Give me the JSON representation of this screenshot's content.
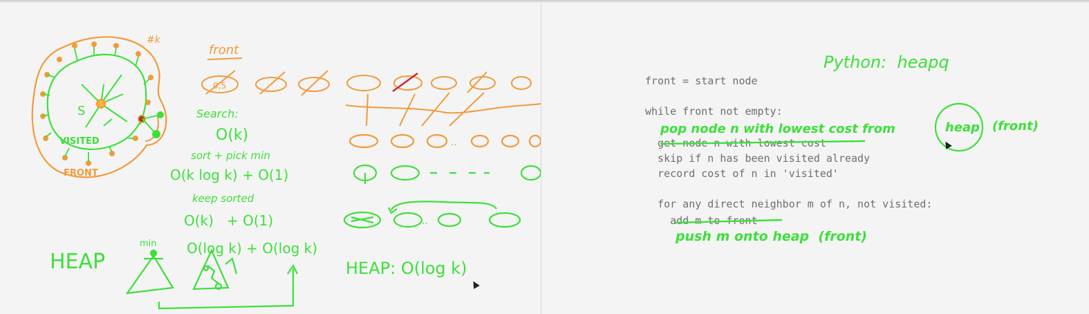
{
  "left_panel": {
    "diagram": {
      "label_k": "#k",
      "label_s": "S",
      "label_visited": "VISITED",
      "label_front": "FRONT"
    },
    "front_label": "front",
    "search": {
      "label": "Search:",
      "complexity": "O(k)"
    },
    "sort": {
      "label": "sort + pick min",
      "complexity": "O(k log k) + O(1)"
    },
    "keep_sorted": {
      "label": "keep sorted",
      "complexity": "O(k)   + O(1)"
    },
    "heap": {
      "label": "HEAP",
      "min_label": "min",
      "complexity": "O(log k) + O(log k)",
      "heap_complexity": "HEAP: O(log k)"
    },
    "colors": {
      "green": "#3ce03a",
      "orange": "#f29a3a",
      "red": "#d0202a"
    }
  },
  "right_panel": {
    "python_title": "Python:  heapq",
    "code": {
      "line1": "front = start node",
      "line2": "while front not empty:",
      "line3": "  get node n with lowest cost",
      "line4": "  skip if n has been visited already",
      "line5": "  record cost of n in 'visited'",
      "line6": "  for any direct neighbor m of n, not visited:",
      "line7": "    add m to front"
    },
    "annotations": {
      "pop": "pop node n with lowest cost from",
      "heap_word": "heap",
      "front_paren": "(front)",
      "push": "push m onto heap  (front)"
    }
  }
}
